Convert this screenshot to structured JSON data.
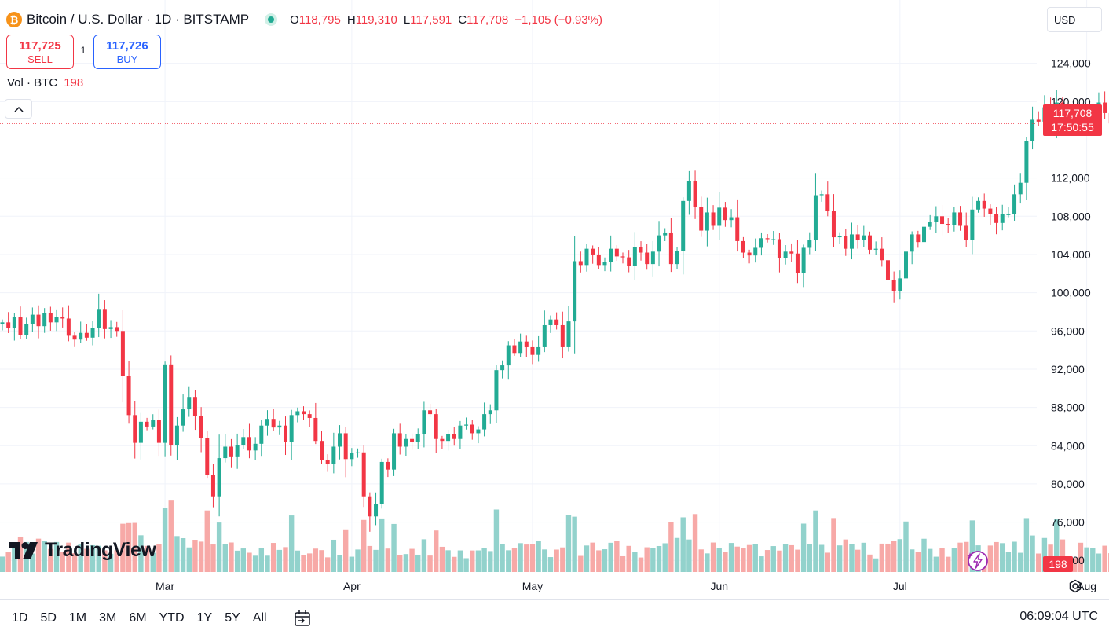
{
  "header": {
    "coin_icon": "bitcoin-icon",
    "title": "Bitcoin / U.S. Dollar · 1D · BITSTAMP",
    "ohlc": {
      "o_label": "O",
      "o": "118,795",
      "h_label": "H",
      "h": "119,310",
      "l_label": "L",
      "l": "117,591",
      "c_label": "C",
      "c": "117,708",
      "change": "−1,105 (−0.93%)"
    }
  },
  "trade": {
    "sell_price": "117,725",
    "sell_label": "SELL",
    "spread": "1",
    "buy_price": "117,726",
    "buy_label": "BUY"
  },
  "volume_legend": {
    "label": "Vol · BTC",
    "value": "198"
  },
  "currency": "USD",
  "last_price": {
    "price": "117,708",
    "countdown": "17:50:55"
  },
  "volume_tag": "198",
  "brand": "TradingView",
  "toolbar": {
    "ranges": [
      "1D",
      "5D",
      "1M",
      "3M",
      "6M",
      "YTD",
      "1Y",
      "5Y",
      "All"
    ],
    "clock": "06:09:04 UTC"
  },
  "colors": {
    "up": "#22ab94",
    "down": "#f23645",
    "up_vol": "#92d2cc",
    "down_vol": "#f7a9a7",
    "grid": "#f0f3fa"
  },
  "chart_data": {
    "type": "candlestick",
    "symbol": "BTCUSD",
    "interval": "1D",
    "y_ticks": [
      "124,000",
      "120,000",
      "112,000",
      "108,000",
      "104,000",
      "100,000",
      "96,000",
      "92,000",
      "88,000",
      "84,000",
      "80,000",
      "76,000",
      "72,000"
    ],
    "y_tick_values": [
      124000,
      120000,
      112000,
      108000,
      104000,
      100000,
      96000,
      92000,
      88000,
      84000,
      80000,
      76000,
      72000
    ],
    "ylim": [
      69800,
      128000
    ],
    "x_labels": [
      {
        "label": "Mar",
        "day": 27
      },
      {
        "label": "Apr",
        "day": 58
      },
      {
        "label": "May",
        "day": 88
      },
      {
        "label": "Jun",
        "day": 119
      },
      {
        "label": "Jul",
        "day": 149
      },
      {
        "label": "Aug",
        "day": 180
      }
    ],
    "first_day": 0,
    "last_price": 117708,
    "closes": [
      96900,
      96300,
      97500,
      95600,
      96700,
      97700,
      96500,
      97900,
      96900,
      97500,
      97300,
      95500,
      95100,
      95800,
      95300,
      96300,
      98300,
      96200,
      96400,
      96000,
      91300,
      87200,
      84300,
      86500,
      86000,
      86700,
      84300,
      92500,
      84100,
      86100,
      87800,
      89100,
      87100,
      84800,
      80900,
      78700,
      82700,
      83900,
      82800,
      84100,
      84900,
      83500,
      84200,
      86100,
      86800,
      85900,
      86100,
      84400,
      87200,
      87600,
      87300,
      86900,
      84500,
      82500,
      82100,
      83900,
      85300,
      82600,
      83200,
      83300,
      78700,
      76600,
      77900,
      82300,
      81500,
      85300,
      83900,
      84700,
      84400,
      85200,
      87700,
      87300,
      84700,
      84500,
      85200,
      84700,
      86100,
      86200,
      85300,
      85700,
      87300,
      87700,
      91900,
      92400,
      94500,
      93700,
      94900,
      94300,
      93500,
      94300,
      96600,
      97200,
      96600,
      94300,
      97000,
      103300,
      102900,
      104600,
      104000,
      102900,
      103200,
      104600,
      103800,
      103700,
      102800,
      104800,
      104200,
      103000,
      104300,
      106000,
      106300,
      103000,
      104400,
      109600,
      111700,
      109000,
      106500,
      108400,
      107000,
      108900,
      107600,
      107900,
      105400,
      104200,
      103900,
      104700,
      105700,
      105600,
      105600,
      103600,
      104300,
      104100,
      102100,
      104700,
      105500,
      110200,
      110300,
      108600,
      105800,
      105900,
      104600,
      106100,
      105500,
      106000,
      104500,
      104600,
      103400,
      101300,
      100200,
      101500,
      104300,
      106100,
      105300,
      106900,
      107400,
      108000,
      107200,
      107100,
      108400,
      107000,
      105500,
      108700,
      109600,
      108800,
      108200,
      107300,
      108200,
      108200,
      110300,
      111500,
      115900,
      118100,
      117900,
      119400,
      117300,
      119900,
      118100,
      118000,
      117800,
      117300,
      117400,
      118700,
      119900,
      118800,
      117708
    ],
    "volume_scale": {
      "axis_tick": "84,000",
      "note": "volume bars share bottom pane"
    }
  }
}
